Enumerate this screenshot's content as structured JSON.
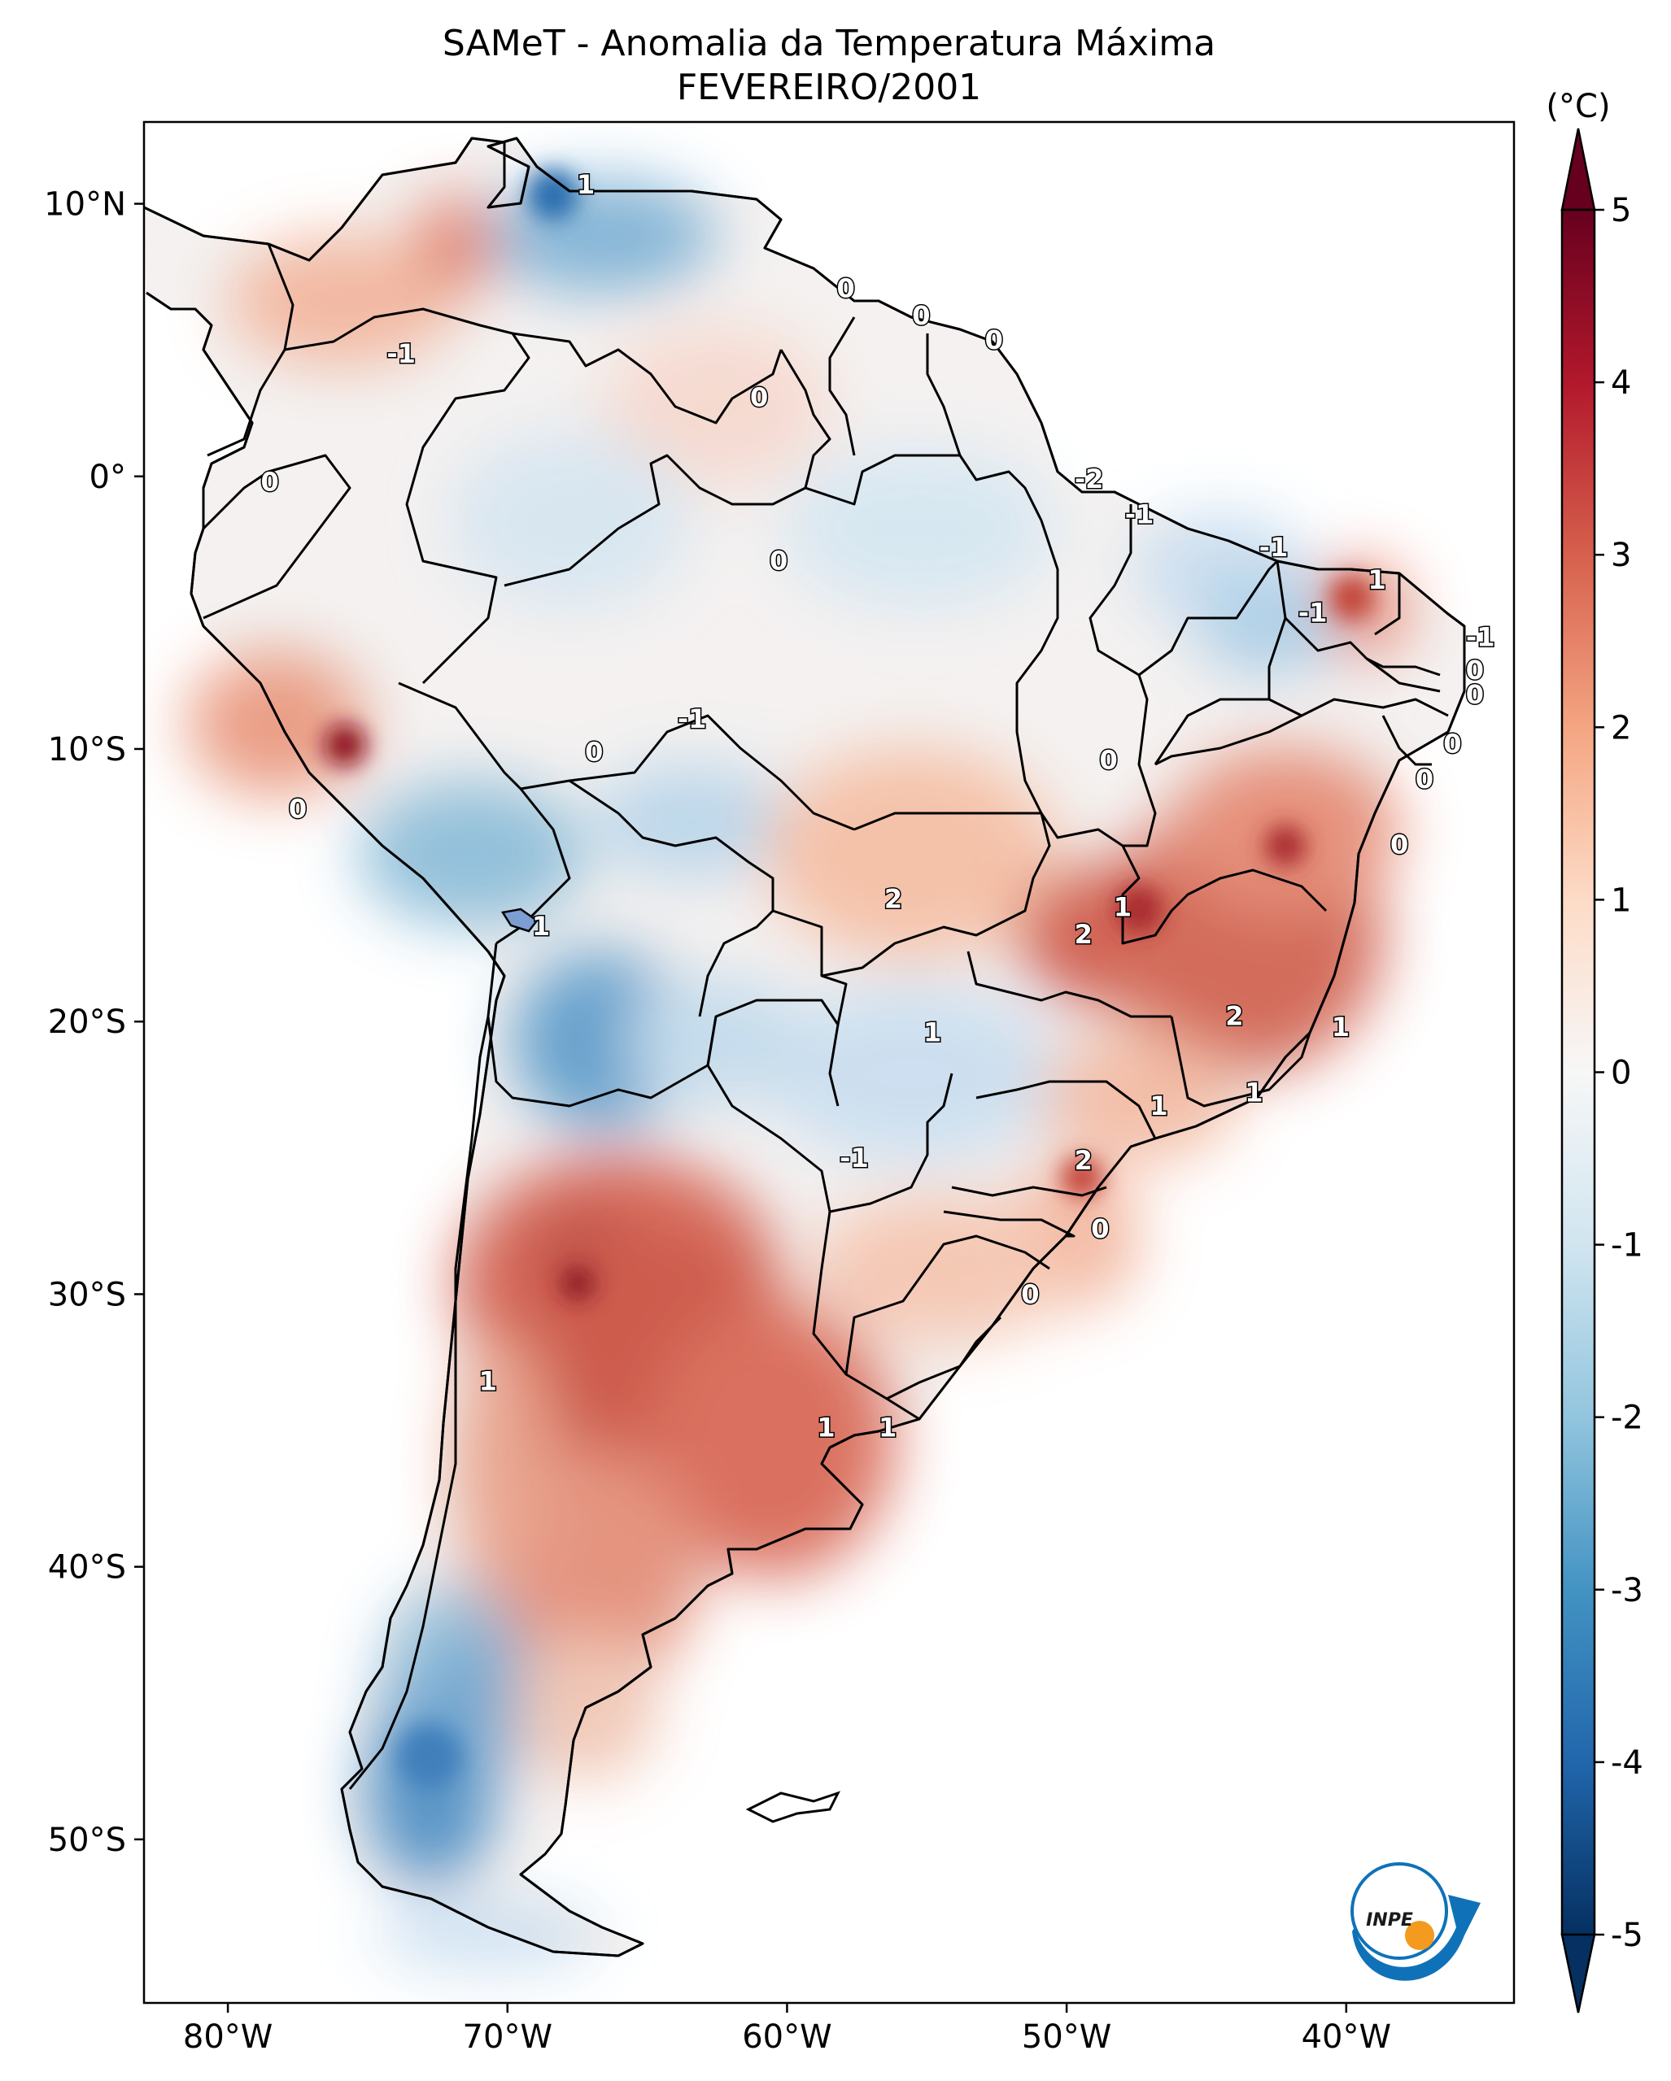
{
  "title": {
    "line1": "SAMeT - Anomalia da Temperatura Máxima",
    "line2": "FEVEREIRO/2001"
  },
  "axes": {
    "lon_ticks": [
      "80°W",
      "70°W",
      "60°W",
      "50°W",
      "40°W"
    ],
    "lat_ticks": [
      "10°N",
      "0°",
      "10°S",
      "20°S",
      "30°S",
      "40°S",
      "50°S"
    ]
  },
  "colorbar": {
    "unit": "(°C)",
    "ticks": [
      "5",
      "4",
      "3",
      "2",
      "1",
      "0",
      "-1",
      "-2",
      "-3",
      "-4",
      "-5"
    ],
    "colors": [
      "#67001f",
      "#b2182b",
      "#d6604d",
      "#f4a582",
      "#fddbc7",
      "#f7f7f7",
      "#d1e5f0",
      "#92c5de",
      "#4393c3",
      "#2166ac",
      "#053061"
    ]
  },
  "contour_labels": [
    {
      "text": "1",
      "lon": -67.2,
      "lat": 10.7
    },
    {
      "text": "-1",
      "lon": -73.8,
      "lat": 4.5
    },
    {
      "text": "0",
      "lon": -57.9,
      "lat": 6.9
    },
    {
      "text": "0",
      "lon": -55.2,
      "lat": 5.9
    },
    {
      "text": "0",
      "lon": -52.6,
      "lat": 5.0
    },
    {
      "text": "0",
      "lon": -61.0,
      "lat": 2.9
    },
    {
      "text": "0",
      "lon": -78.5,
      "lat": -0.2
    },
    {
      "text": "-2",
      "lon": -49.2,
      "lat": -0.1
    },
    {
      "text": "-1",
      "lon": -47.4,
      "lat": -1.4
    },
    {
      "text": "-1",
      "lon": -42.6,
      "lat": -2.6
    },
    {
      "text": "0",
      "lon": -60.3,
      "lat": -3.1
    },
    {
      "text": "1",
      "lon": -38.9,
      "lat": -3.8
    },
    {
      "text": "-1",
      "lon": -41.2,
      "lat": -5.0
    },
    {
      "text": "-1",
      "lon": -35.2,
      "lat": -5.9
    },
    {
      "text": "0",
      "lon": -35.4,
      "lat": -7.1
    },
    {
      "text": "0",
      "lon": -35.4,
      "lat": -8.0
    },
    {
      "text": "-1",
      "lon": -63.4,
      "lat": -8.9
    },
    {
      "text": "0",
      "lon": -66.9,
      "lat": -10.1
    },
    {
      "text": "0",
      "lon": -36.2,
      "lat": -9.8
    },
    {
      "text": "0",
      "lon": -48.5,
      "lat": -10.4
    },
    {
      "text": "0",
      "lon": -37.2,
      "lat": -11.1
    },
    {
      "text": "0",
      "lon": -77.5,
      "lat": -12.2
    },
    {
      "text": "0",
      "lon": -38.1,
      "lat": -13.5
    },
    {
      "text": "2",
      "lon": -56.2,
      "lat": -15.5
    },
    {
      "text": "1",
      "lon": -48.0,
      "lat": -15.8
    },
    {
      "text": "2",
      "lon": -49.4,
      "lat": -16.8
    },
    {
      "text": "1",
      "lon": -68.8,
      "lat": -16.5
    },
    {
      "text": "1",
      "lon": -54.8,
      "lat": -20.4
    },
    {
      "text": "2",
      "lon": -44.0,
      "lat": -19.8
    },
    {
      "text": "1",
      "lon": -40.2,
      "lat": -20.2
    },
    {
      "text": "1",
      "lon": -46.7,
      "lat": -23.1
    },
    {
      "text": "1",
      "lon": -43.3,
      "lat": -22.6
    },
    {
      "text": "-1",
      "lon": -57.6,
      "lat": -25.0
    },
    {
      "text": "2",
      "lon": -49.4,
      "lat": -25.1
    },
    {
      "text": "0",
      "lon": -48.8,
      "lat": -27.6
    },
    {
      "text": "0",
      "lon": -51.3,
      "lat": -30.0
    },
    {
      "text": "1",
      "lon": -70.7,
      "lat": -33.2
    },
    {
      "text": "1",
      "lon": -58.6,
      "lat": -34.9
    },
    {
      "text": "1",
      "lon": -56.4,
      "lat": -34.9
    }
  ],
  "logo": {
    "text": "INPE"
  }
}
